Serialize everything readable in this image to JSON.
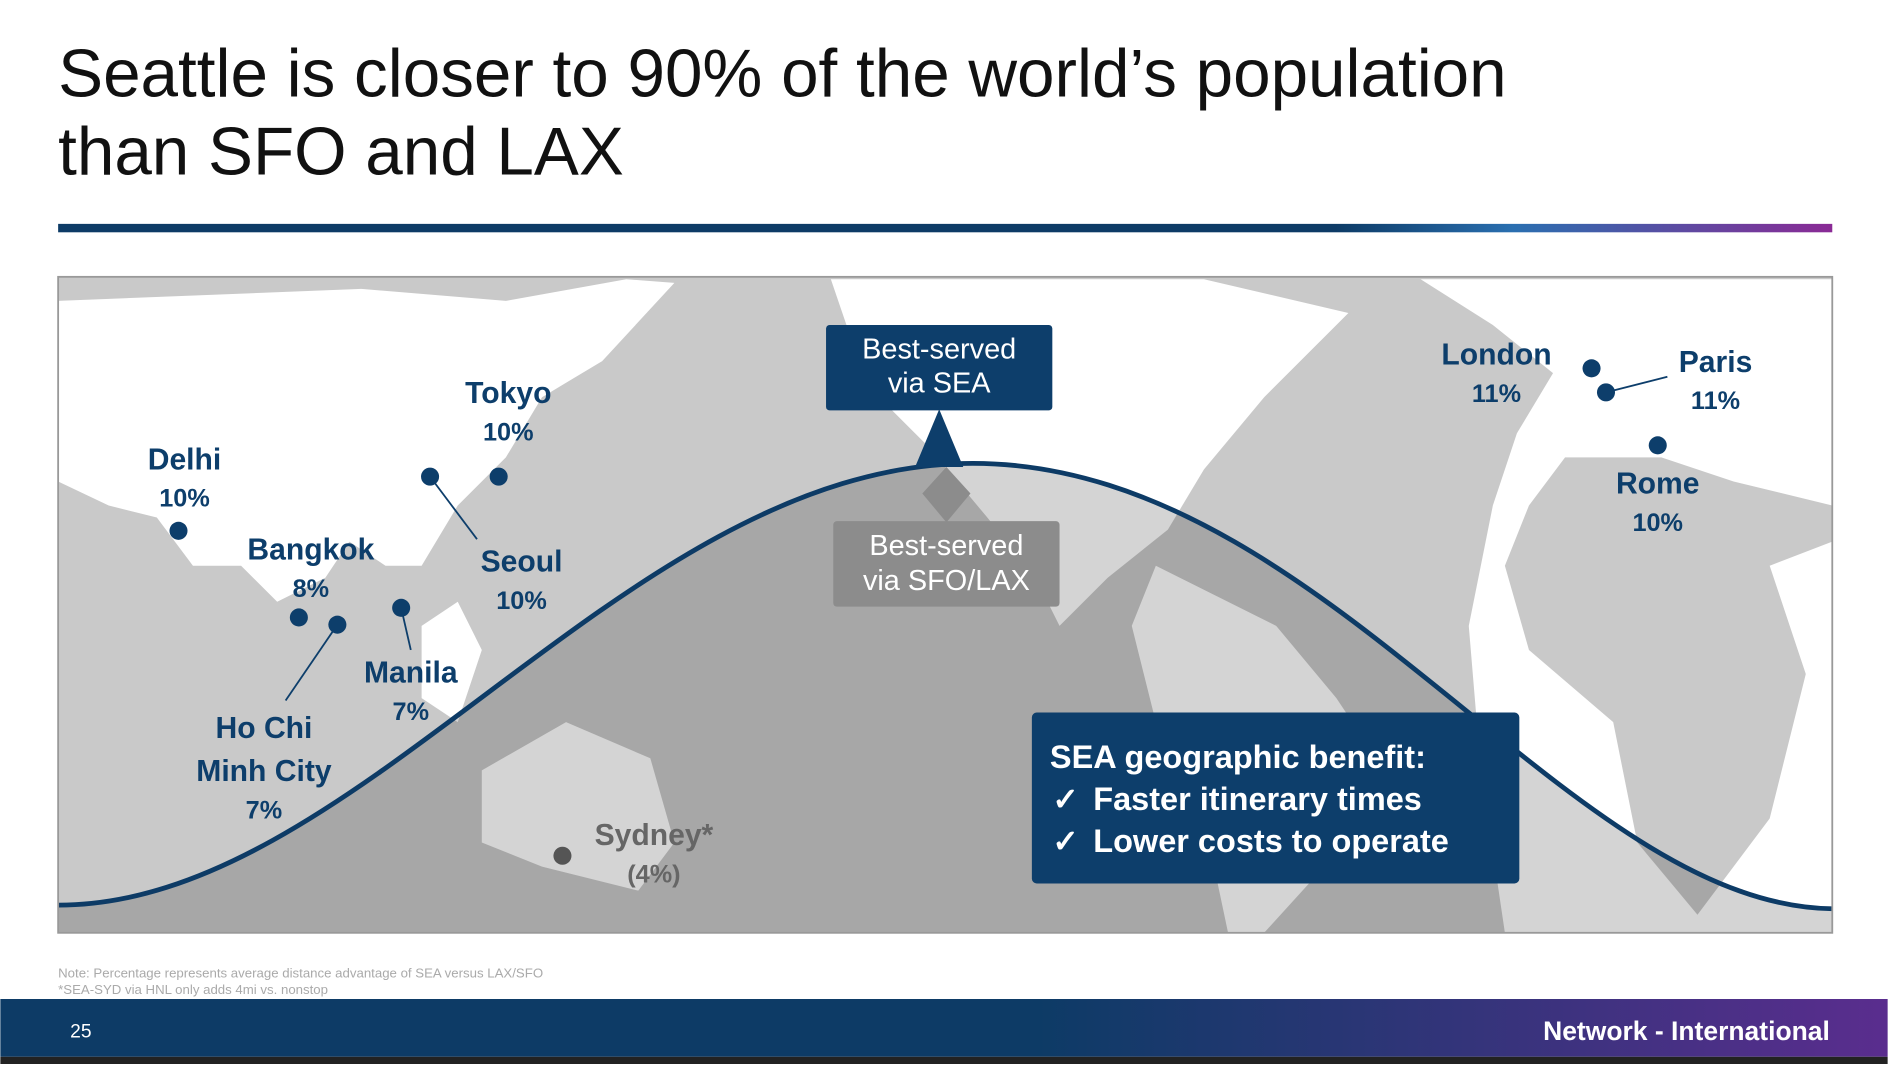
{
  "title": {
    "lines": [
      "Seattle is closer to 90% of the world’s population",
      "than SFO and LAX"
    ]
  },
  "callouts": {
    "sea": [
      "Best-served",
      "via SEA"
    ],
    "sfo_lax": [
      "Best-served",
      "via SFO/LAX"
    ]
  },
  "cities": [
    {
      "name": [
        "Delhi"
      ],
      "share": "10%"
    },
    {
      "name": [
        "Tokyo"
      ],
      "share": "10%"
    },
    {
      "name": [
        "Seoul"
      ],
      "share": "10%"
    },
    {
      "name": [
        "Bangkok"
      ],
      "share": "8%"
    },
    {
      "name": [
        "Manila"
      ],
      "share": "7%"
    },
    {
      "name": [
        "Ho Chi",
        "Minh City"
      ],
      "share": "7%"
    },
    {
      "name": [
        "Sydney*"
      ],
      "share": "(4%)"
    },
    {
      "name": [
        "London"
      ],
      "share": "11%"
    },
    {
      "name": [
        "Paris"
      ],
      "share": "11%"
    },
    {
      "name": [
        "Rome"
      ],
      "share": "10%"
    }
  ],
  "benefit": {
    "heading": "SEA geographic benefit:",
    "items": [
      "Faster itinerary times",
      "Lower costs to operate"
    ],
    "check": "✓"
  },
  "notes": [
    "Note: Percentage represents average distance advantage of SEA versus LAX/SFO",
    "*SEA-SYD via HNL only adds 4mi vs. nonstop"
  ],
  "footer": {
    "page": "25",
    "section": "Network - International"
  }
}
